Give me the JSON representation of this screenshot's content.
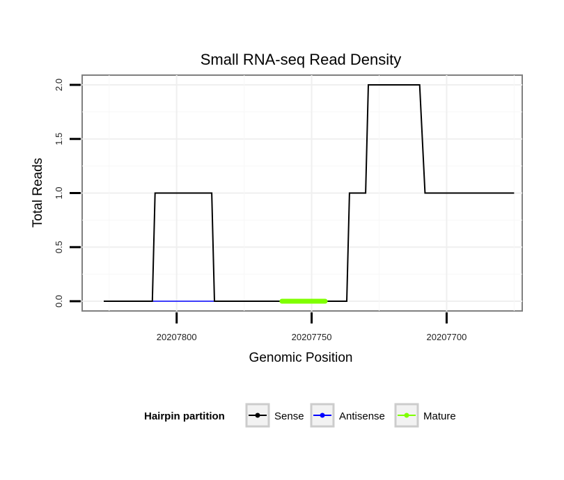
{
  "chart_data": {
    "type": "line",
    "title": "Small RNA-seq Read Density",
    "xlabel": "Genomic Position",
    "ylabel": "Total Reads",
    "xlim": [
      20207835,
      20207672
    ],
    "ylim": [
      -0.09,
      2.09
    ],
    "x_reversed": true,
    "x_ticks": [
      20207800,
      20207750,
      20207700
    ],
    "x_tick_labels": [
      "20207800",
      "20207750",
      "20207700"
    ],
    "y_ticks": [
      0,
      0.5,
      1,
      1.5,
      2
    ],
    "y_tick_labels": [
      "0.0",
      "0.5",
      "1.0",
      "1.5",
      "2.0"
    ],
    "grid": true,
    "legend": {
      "title": "Hairpin partition",
      "position": "bottom",
      "entries": [
        {
          "label": "Sense",
          "color": "#000000"
        },
        {
          "label": "Antisense",
          "color": "#0000ff"
        },
        {
          "label": "Mature",
          "color": "#7fff00"
        }
      ]
    },
    "series": [
      {
        "name": "Sense",
        "color": "#000000",
        "x": [
          20207827,
          20207809,
          20207808,
          20207787,
          20207786,
          20207761,
          20207760,
          20207749,
          20207748,
          20207737,
          20207736,
          20207730,
          20207729,
          20207710,
          20207708,
          20207675
        ],
        "y": [
          0,
          0,
          1,
          1,
          0,
          0,
          0,
          0,
          0,
          0,
          1,
          1,
          2,
          2,
          1,
          1
        ]
      },
      {
        "name": "Antisense",
        "color": "#0000ff",
        "x": [
          20207809,
          20207786
        ],
        "y": [
          0,
          0
        ]
      },
      {
        "name": "Mature",
        "color": "#7fff00",
        "x": [
          20207761,
          20207745
        ],
        "y": [
          0,
          0
        ]
      }
    ]
  }
}
